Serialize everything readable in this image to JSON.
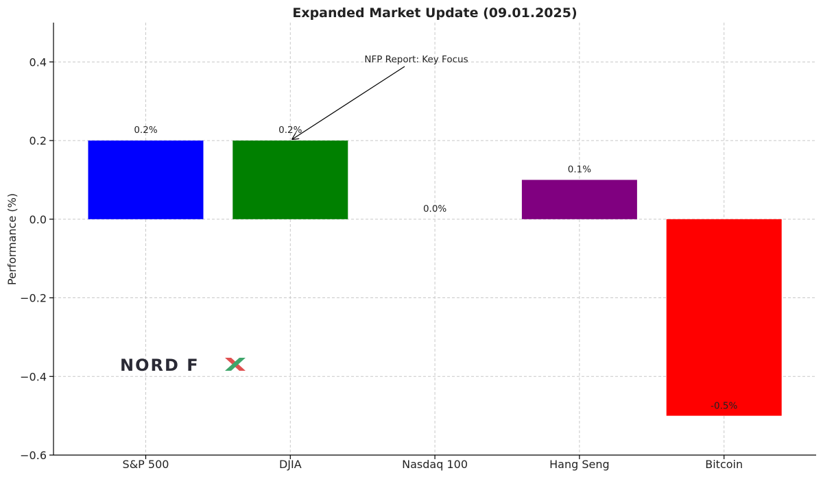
{
  "chart_data": {
    "type": "bar",
    "title": "Expanded Market Update (09.01.2025)",
    "xlabel": "",
    "ylabel": "Performance (%)",
    "categories": [
      "S&P 500",
      "DJIA",
      "Nasdaq 100",
      "Hang Seng",
      "Bitcoin"
    ],
    "values": [
      0.2,
      0.2,
      0.0,
      0.1,
      -0.5
    ],
    "data_labels": [
      "0.2%",
      "0.2%",
      "0.0%",
      "0.1%",
      "-0.5%"
    ],
    "colors": [
      "#0000ff",
      "#008000",
      "#ffa500",
      "#800080",
      "#ff0000"
    ],
    "ylim": [
      -0.6,
      0.5
    ],
    "yticks": [
      -0.6,
      -0.4,
      -0.2,
      0.0,
      0.2,
      0.4
    ],
    "ytick_labels": [
      "−0.6",
      "−0.4",
      "−0.2",
      "0.0",
      "0.2",
      "0.4"
    ],
    "grid": true,
    "annotation": {
      "text": "NFP Report: Key Focus",
      "target_category": "DJIA",
      "target_value": 0.2
    },
    "logo": {
      "text_dark": "NORD F",
      "text_accent": "X",
      "accent_colors": [
        "#e05050",
        "#3fa66b"
      ]
    }
  }
}
